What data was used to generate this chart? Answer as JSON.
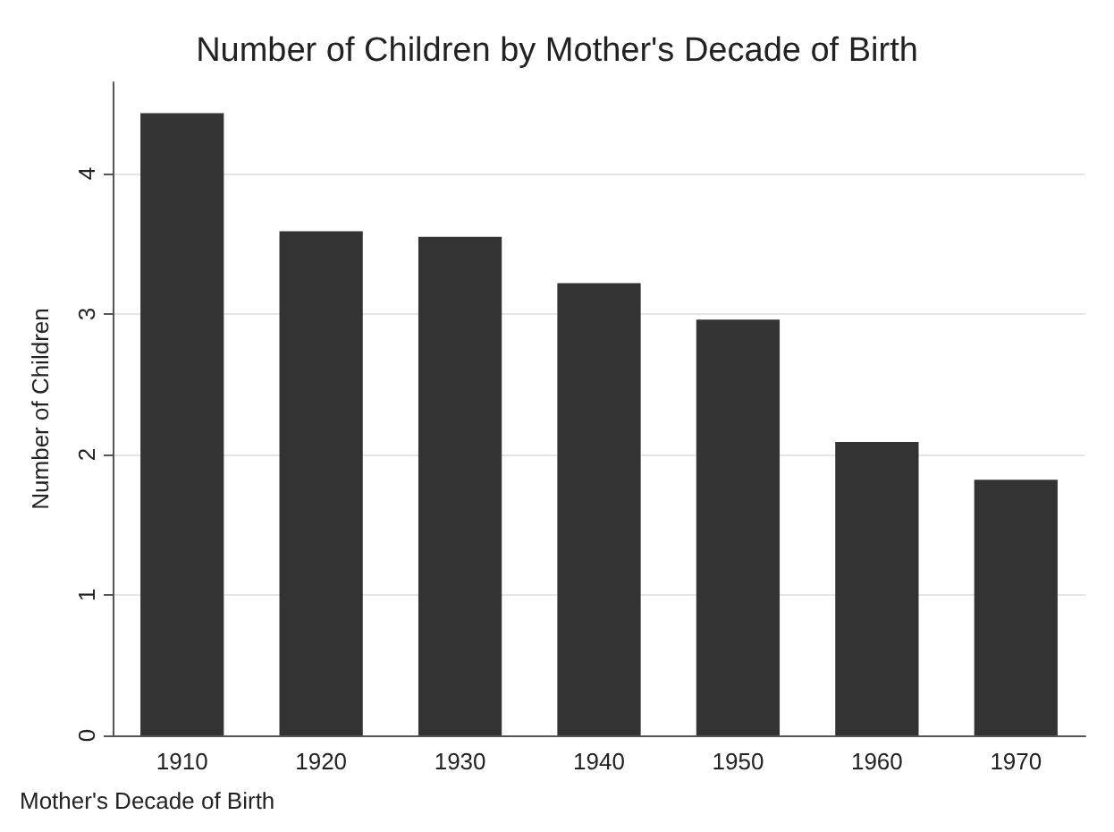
{
  "chart_data": {
    "type": "bar",
    "title": "Number of Children by Mother's Decade of Birth",
    "xlabel": "Mother's Decade of Birth",
    "ylabel": "Number of Children",
    "categories": [
      "1910",
      "1920",
      "1930",
      "1940",
      "1950",
      "1960",
      "1970"
    ],
    "values": [
      4.43,
      3.59,
      3.55,
      3.22,
      2.96,
      2.09,
      1.82
    ],
    "color": "#333333",
    "ylim": [
      0,
      4.65
    ],
    "yticks": [
      0,
      1,
      2,
      3,
      4
    ],
    "grid": "y"
  }
}
